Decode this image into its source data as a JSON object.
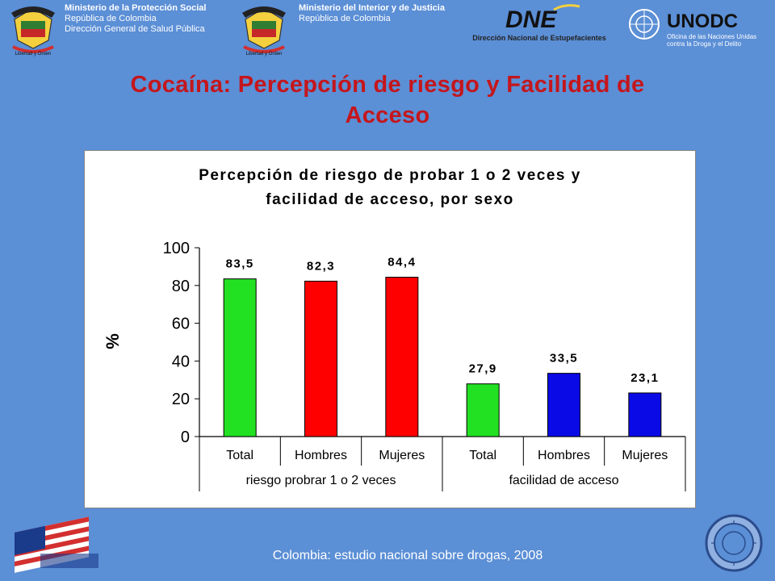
{
  "header": {
    "ministry1": [
      "Ministerio de la Protección Social",
      "República de Colombia",
      "Dirección General de Salud Pública"
    ],
    "ministry2": [
      "Ministerio del Interior y de Justicia",
      "República de Colombia"
    ],
    "crest_motto": "Libertad y Orden",
    "dne_logo_text": "DNE",
    "dne_subtitle": "Dirección Nacional de Estupefacientes",
    "unodc_logo_text": "UNODC",
    "unodc_subtitle": [
      "Oficina de las Naciones Unidas",
      "contra la Droga y el Delito"
    ]
  },
  "slide_title": [
    "Cocaína: Percepción de riesgo y Facilidad de",
    "Acceso"
  ],
  "footer": "Colombia: estudio nacional sobre drogas, 2008",
  "colors": {
    "green": "#22e022",
    "red": "#ff0000",
    "blue": "#0a0ae6",
    "title": "#c4161c",
    "background": "#5b8fd6"
  },
  "chart_data": {
    "type": "bar",
    "title": [
      "Percepción de riesgo de probar 1 o 2 veces y",
      "facilidad de acceso, por sexo"
    ],
    "ylabel": "%",
    "ylim": [
      0,
      100
    ],
    "yticks": [
      "100",
      "80",
      "60",
      "40",
      "20",
      "0"
    ],
    "grid": false,
    "groups": [
      {
        "label": "riesgo probrar 1 o 2 veces",
        "categories": [
          "Total",
          "Hombres",
          "Mujeres"
        ],
        "values": [
          83.5,
          82.3,
          84.4
        ],
        "value_labels": [
          "83,5",
          "82,3",
          "84,4"
        ],
        "colors": [
          "green",
          "red",
          "red"
        ]
      },
      {
        "label": "facilidad de acceso",
        "categories": [
          "Total",
          "Hombres",
          "Mujeres"
        ],
        "values": [
          27.9,
          33.5,
          23.1
        ],
        "value_labels": [
          "27,9",
          "33,5",
          "23,1"
        ],
        "colors": [
          "green",
          "blue",
          "blue"
        ]
      }
    ]
  }
}
